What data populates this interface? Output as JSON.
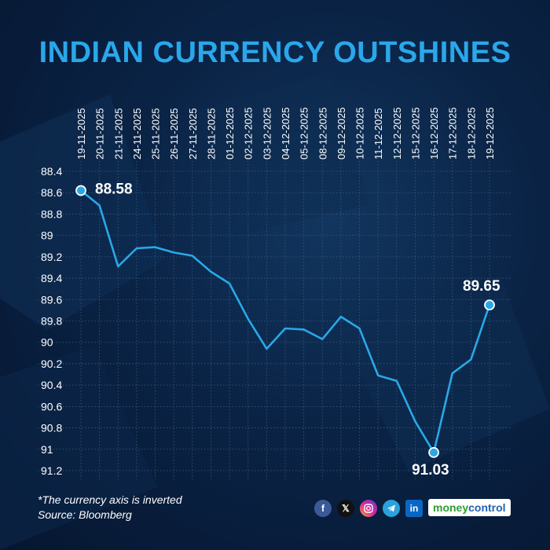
{
  "header": {
    "title": "INDIAN CURRENCY OUTSHINES"
  },
  "footer": {
    "note": "*The currency axis is inverted",
    "source": "Source: Bloomberg",
    "brand_part1": "money",
    "brand_part2": "control",
    "social_icons": [
      "facebook-icon",
      "x-icon",
      "instagram-icon",
      "telegram-icon",
      "linkedin-icon"
    ]
  },
  "colors": {
    "title": "#2aa7ea",
    "line": "#29a8e8",
    "text": "#ffffff"
  },
  "chart_data": {
    "type": "line",
    "title": "INDIAN CURRENCY OUTSHINES",
    "xlabel": "",
    "ylabel": "",
    "y_inverted": true,
    "ylim": [
      88.4,
      91.2
    ],
    "yticks": [
      "88.4",
      "88.6",
      "88.8",
      "89",
      "89.2",
      "89.4",
      "89.6",
      "89.8",
      "90",
      "90.2",
      "90.4",
      "90.6",
      "90.8",
      "91",
      "91.2"
    ],
    "grid": true,
    "x": [
      "19-11-2025",
      "20-11-2025",
      "21-11-2025",
      "24-11-2025",
      "25-11-2025",
      "26-11-2025",
      "27-11-2025",
      "28-11-2025",
      "01-12-2025",
      "02-12-2025",
      "03-12-2025",
      "04-12-2025",
      "05-12-2025",
      "08-12-2025",
      "09-12-2025",
      "10-12-2025",
      "11-12-2025",
      "12-12-2025",
      "15-12-2025",
      "16-12-2025",
      "17-12-2025",
      "18-12-2025",
      "19-12-2025"
    ],
    "series": [
      {
        "values": [
          88.58,
          88.72,
          89.29,
          89.12,
          89.11,
          89.16,
          89.19,
          89.34,
          89.45,
          89.78,
          90.06,
          89.87,
          89.88,
          89.97,
          89.76,
          89.87,
          90.31,
          90.36,
          90.74,
          91.03,
          90.29,
          90.16,
          89.65
        ]
      }
    ],
    "data_labels": [
      {
        "index": 0,
        "text": "88.58"
      },
      {
        "index": 19,
        "text": "91.03"
      },
      {
        "index": 22,
        "text": "89.65"
      }
    ]
  }
}
